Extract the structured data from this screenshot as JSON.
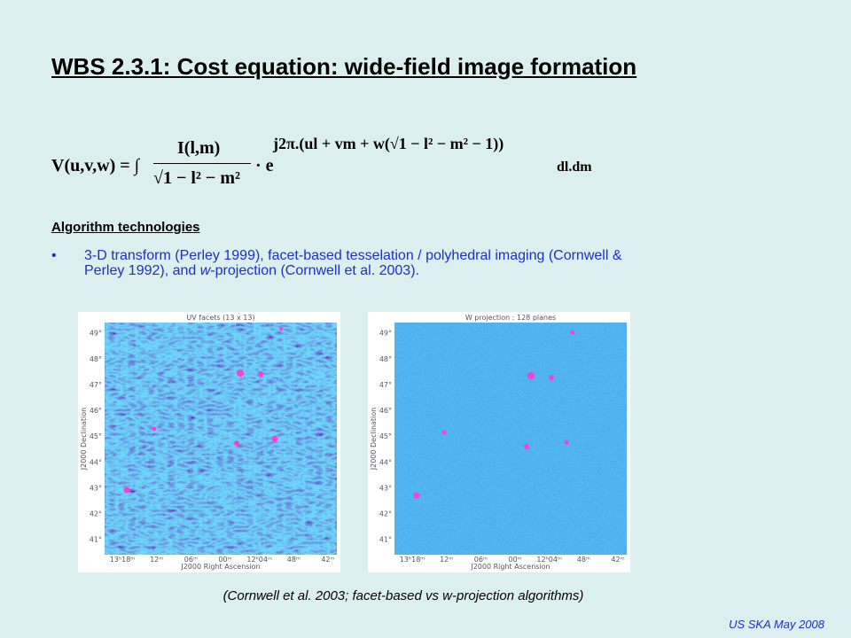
{
  "title": "WBS 2.3.1: Cost equation: wide-field image formation",
  "formula": {
    "lhs": "V(u,v,w) = ∫",
    "numerator": "I(l,m)",
    "denominator": "√1 − l² − m²",
    "dot": "· e",
    "exponent": "j2π.(ul + vm + w(√1 − l² − m² − 1))",
    "tail": "dl.dm"
  },
  "heading": "Algorithm technologies",
  "bullet": {
    "before": "3-D transform (Perley 1999), facet-based tesselation / polyhedral imaging (Cornwell & Perley 1992), and ",
    "italic": "w",
    "after": "-projection (Cornwell et al. 2003)."
  },
  "figures": [
    {
      "title": "UV facets (13 x 13)",
      "y_axis_label": "J2000 Declination",
      "x_axis_label": "J2000 Right Ascension",
      "y_ticks": [
        "49°",
        "48°",
        "47°",
        "46°",
        "45°",
        "44°",
        "43°",
        "42°",
        "41°"
      ],
      "x_ticks": [
        "13ʰ18ᵐ",
        "12ᵐ",
        "06ᵐ",
        "00ᵐ",
        "12ʰ04ᵐ",
        "48ᵐ",
        "42ᵐ"
      ]
    },
    {
      "title": "W projection : 128 planes",
      "y_axis_label": "J2000 Declination",
      "x_axis_label": "J2000 Right Ascension",
      "y_ticks": [
        "49°",
        "48°",
        "47°",
        "46°",
        "45°",
        "44°",
        "43°",
        "42°",
        "41°"
      ],
      "x_ticks": [
        "13ʰ18ᵐ",
        "12ᵐ",
        "06ᵐ",
        "00ᵐ",
        "12ʰ04ᵐ",
        "48ᵐ",
        "42ᵐ"
      ]
    }
  ],
  "caption": "(Cornwell et al. 2003; facet-based vs w-projection algorithms)",
  "footer": "US SKA May 2008"
}
